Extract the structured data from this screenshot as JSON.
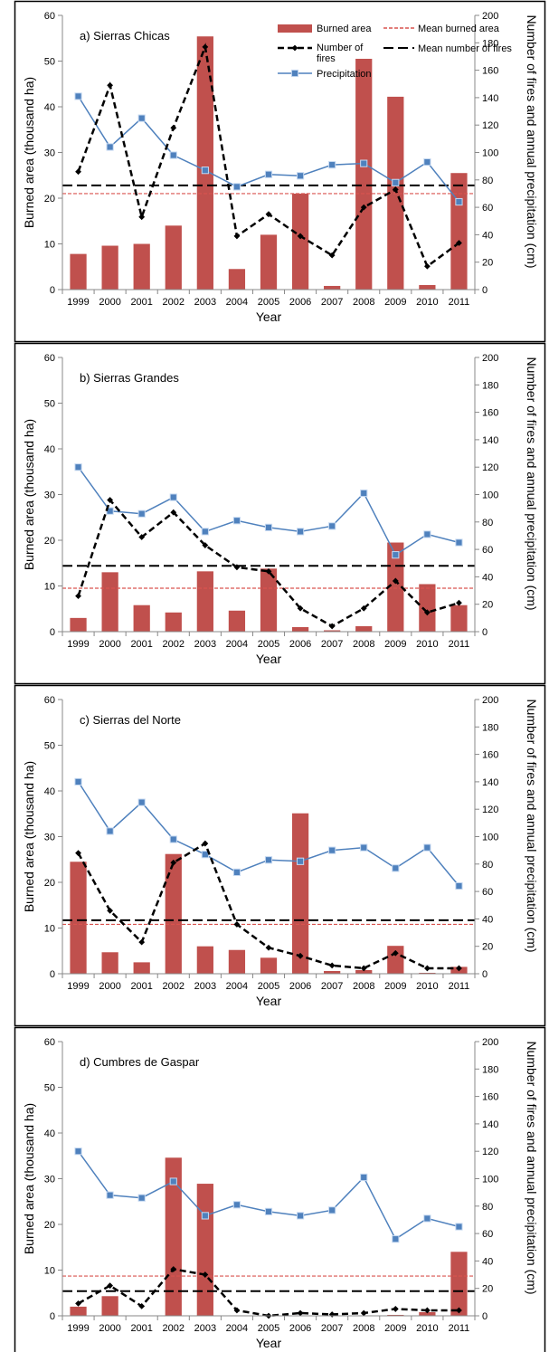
{
  "chart_data": [
    {
      "type": "bar",
      "title": "a) Sierras Chicas",
      "xlabel": "Year",
      "ylabel": "Burned area (thousand ha)",
      "y2label": "Number of fires and annual precipitation (cm)",
      "ylim": [
        0,
        60
      ],
      "y2lim": [
        0,
        200
      ],
      "yticks": [
        "0",
        "10",
        "20",
        "30",
        "40",
        "50",
        "60"
      ],
      "y2ticks": [
        "0",
        "20",
        "40",
        "60",
        "80",
        "100",
        "120",
        "140",
        "160",
        "180",
        "200"
      ],
      "categories": [
        "1999",
        "2000",
        "2001",
        "2002",
        "2003",
        "2004",
        "2005",
        "2006",
        "2007",
        "2008",
        "2009",
        "2010",
        "2011"
      ],
      "legend_position": "top-right",
      "legend": {
        "burned_area": "Burned area",
        "mean_burned_area": "Mean burned area",
        "number_of_fires": "Number of fires",
        "mean_number_of_fires": "Mean number of fires",
        "precipitation": "Precipitation"
      },
      "burned_area": [
        7.8,
        9.6,
        10.0,
        14.0,
        55.4,
        4.5,
        12.0,
        21.0,
        0.8,
        50.5,
        42.2,
        1.0,
        25.5
      ],
      "mean_burned_area": 21.0,
      "number_of_fires": [
        86,
        149,
        53,
        118,
        177,
        39,
        55,
        39,
        25,
        60,
        73,
        17,
        34
      ],
      "mean_number_of_fires": 76,
      "precipitation": [
        141,
        104,
        125,
        98,
        87,
        75,
        84,
        83,
        91,
        92,
        78,
        93,
        64
      ]
    },
    {
      "type": "bar",
      "title": "b) Sierras Grandes",
      "xlabel": "Year",
      "ylabel": "Burned area (thousand ha)",
      "y2label": "Number of fires and annual precipitation (cm)",
      "ylim": [
        0,
        60
      ],
      "y2lim": [
        0,
        200
      ],
      "yticks": [
        "0",
        "10",
        "20",
        "30",
        "40",
        "50",
        "60"
      ],
      "y2ticks": [
        "0",
        "20",
        "40",
        "60",
        "80",
        "100",
        "120",
        "140",
        "160",
        "180",
        "200"
      ],
      "categories": [
        "1999",
        "2000",
        "2001",
        "2002",
        "2003",
        "2004",
        "2005",
        "2006",
        "2007",
        "2008",
        "2009",
        "2010",
        "2011"
      ],
      "burned_area": [
        3.0,
        13.0,
        5.8,
        4.2,
        13.2,
        4.6,
        13.8,
        1.0,
        0.3,
        1.2,
        19.5,
        10.4,
        5.8
      ],
      "mean_burned_area": 9.5,
      "number_of_fires": [
        26,
        96,
        69,
        87,
        63,
        47,
        44,
        17,
        4,
        17,
        37,
        14,
        21
      ],
      "mean_number_of_fires": 48,
      "precipitation": [
        120,
        88,
        86,
        98,
        73,
        81,
        76,
        73,
        77,
        101,
        56,
        71,
        65
      ]
    },
    {
      "type": "bar",
      "title": "c) Sierras del Norte",
      "xlabel": "Year",
      "ylabel": "Burned area (thousand ha)",
      "y2label": "Number of fires and annual precipitation (cm)",
      "ylim": [
        0,
        60
      ],
      "y2lim": [
        0,
        200
      ],
      "yticks": [
        "0",
        "10",
        "20",
        "30",
        "40",
        "50",
        "60"
      ],
      "y2ticks": [
        "0",
        "20",
        "40",
        "60",
        "80",
        "100",
        "120",
        "140",
        "160",
        "180",
        "200"
      ],
      "categories": [
        "1999",
        "2000",
        "2001",
        "2002",
        "2003",
        "2004",
        "2005",
        "2006",
        "2007",
        "2008",
        "2009",
        "2010",
        "2011"
      ],
      "burned_area": [
        24.5,
        4.7,
        2.5,
        26.2,
        6.0,
        5.2,
        3.5,
        35.1,
        0.6,
        0.8,
        6.1,
        0.2,
        1.5
      ],
      "mean_burned_area": 10.8,
      "number_of_fires": [
        88,
        46,
        23,
        81,
        95,
        36,
        19,
        13,
        6,
        4,
        15,
        4,
        4
      ],
      "mean_number_of_fires": 39,
      "precipitation": [
        140,
        104,
        125,
        98,
        87,
        74,
        83,
        82,
        90,
        92,
        77,
        92,
        64
      ]
    },
    {
      "type": "bar",
      "title": "d) Cumbres de Gaspar",
      "xlabel": "Year",
      "ylabel": "Burned area (thousand ha)",
      "y2label": "Number of fires and annual precipitation (cm)",
      "ylim": [
        0,
        60
      ],
      "y2lim": [
        0,
        200
      ],
      "yticks": [
        "0",
        "10",
        "20",
        "30",
        "40",
        "50",
        "60"
      ],
      "y2ticks": [
        "0",
        "20",
        "40",
        "60",
        "80",
        "100",
        "120",
        "140",
        "160",
        "180",
        "200"
      ],
      "categories": [
        "1999",
        "2000",
        "2001",
        "2002",
        "2003",
        "2004",
        "2005",
        "2006",
        "2007",
        "2008",
        "2009",
        "2010",
        "2011"
      ],
      "burned_area": [
        2.0,
        4.3,
        0.1,
        34.6,
        28.9,
        0.1,
        0.0,
        0.1,
        0.1,
        0.1,
        0.2,
        0.8,
        14.0
      ],
      "mean_burned_area": 8.7,
      "number_of_fires": [
        9,
        22,
        7,
        34,
        30,
        4,
        0,
        2,
        1,
        2,
        5,
        4,
        4
      ],
      "mean_number_of_fires": 18,
      "precipitation": [
        120,
        88,
        86,
        98,
        73,
        81,
        76,
        73,
        77,
        101,
        56,
        71,
        65
      ]
    }
  ],
  "colors": {
    "bar": "#c0504d",
    "mean_burned_area": "#d9534f",
    "fires": "#000000",
    "mean_fires": "#000000",
    "precipitation": "#4f81bd",
    "precipitation_marker_fill": "#4f81bd",
    "precipitation_marker_edge": "#c6d9f1"
  }
}
